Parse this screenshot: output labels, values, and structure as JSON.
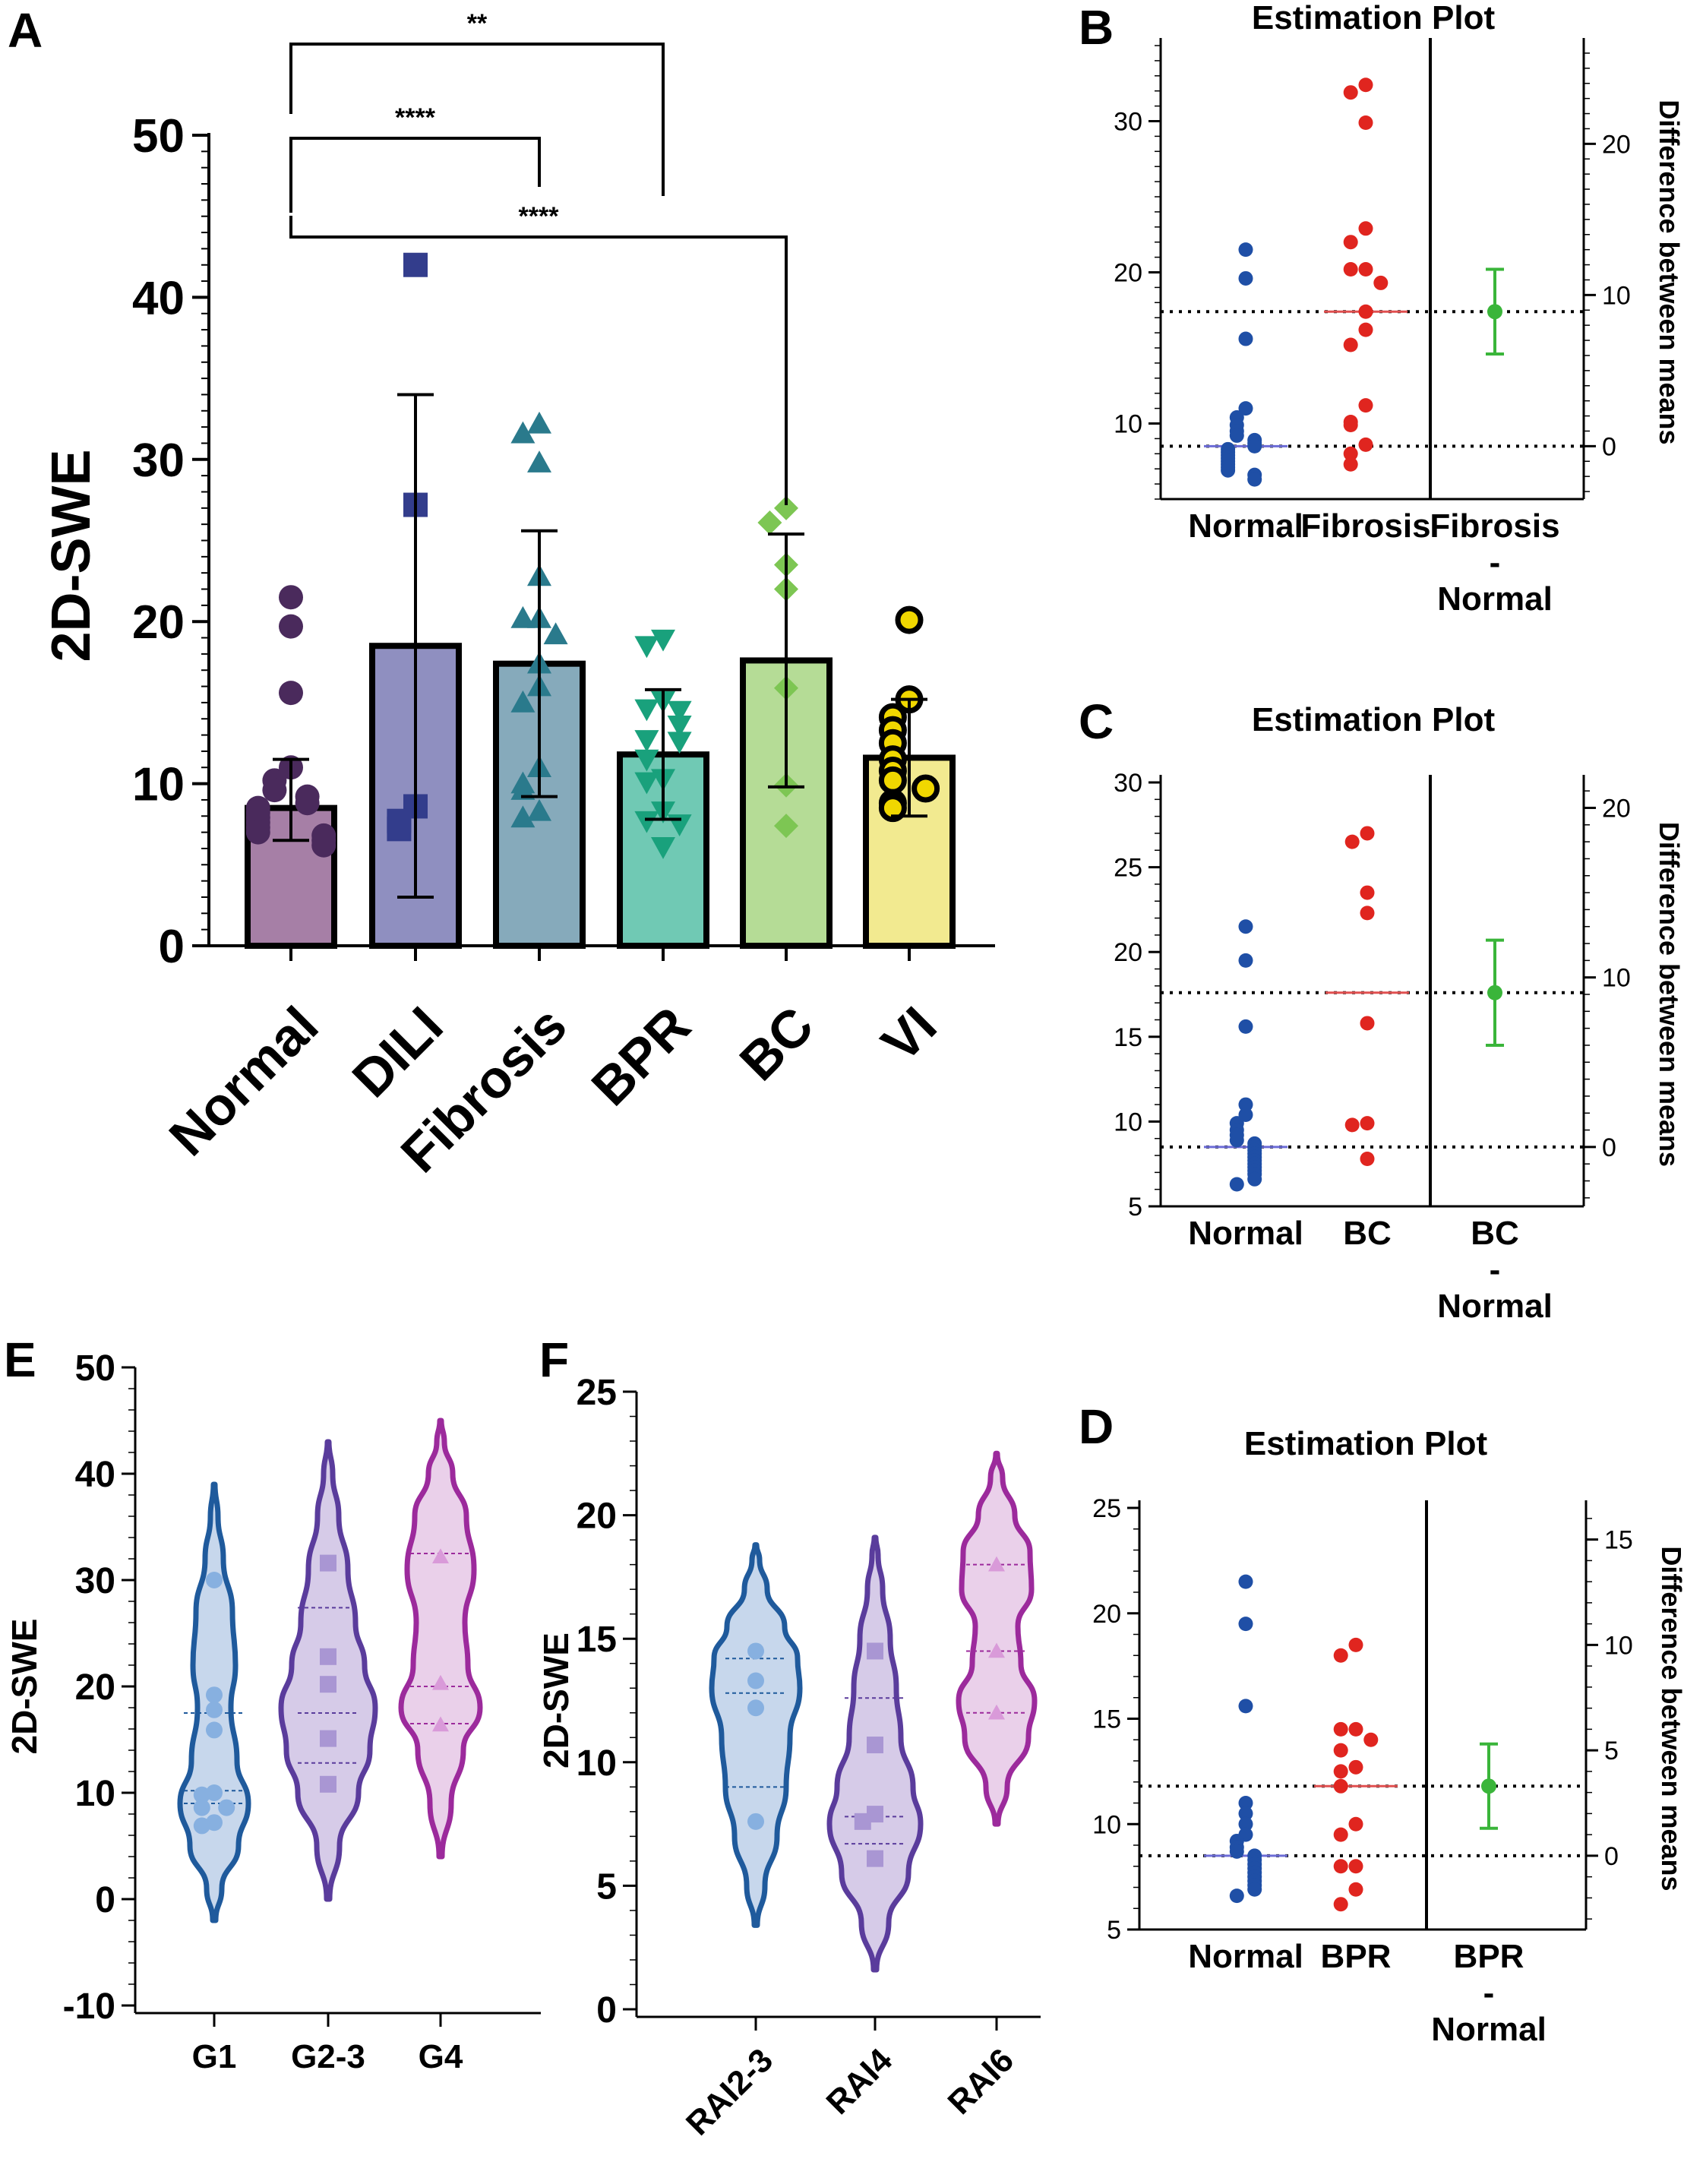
{
  "chart_data": [
    {
      "panel": "A",
      "type": "bar",
      "ylabel": "2D-SWE",
      "ylim": [
        0,
        50
      ],
      "yticks": [
        "0",
        "10",
        "20",
        "30",
        "40",
        "50"
      ],
      "categories": [
        "Normal",
        "DILI",
        "Fibrosis",
        "BPR",
        "BC",
        "VI"
      ],
      "means": [
        8.5,
        18.5,
        17.4,
        11.8,
        17.6,
        11.6
      ],
      "sd_upper": [
        11.5,
        34.0,
        25.6,
        15.8,
        25.4,
        15.2
      ],
      "sd_lower": [
        6.5,
        3.0,
        9.2,
        7.8,
        9.8,
        8.0
      ],
      "colors": [
        "#a67fa6",
        "#8f8fc0",
        "#86aabb",
        "#70c9b4",
        "#b5dc96",
        "#f2ea90"
      ],
      "marker_colors": [
        "#4a2a5c",
        "#333d8c",
        "#2a7a8c",
        "#19a17c",
        "#7dc653",
        "#f0d700"
      ],
      "points": [
        [
          21.5,
          19.7,
          15.6,
          11.0,
          10.2,
          9.6,
          9.2,
          8.8,
          8.5,
          8.2,
          7.9,
          7.6,
          7.3,
          7.0,
          6.8,
          6.5,
          6.2
        ],
        [
          42.0,
          27.2,
          8.6,
          7.7,
          7.2
        ],
        [
          32.2,
          31.6,
          29.8,
          22.8,
          20.2,
          20.2,
          19.2,
          17.4,
          16.0,
          15.0,
          11.0,
          10.0,
          9.6,
          8.3,
          7.9
        ],
        [
          18.9,
          18.5,
          15.1,
          14.6,
          14.5,
          13.6,
          12.7,
          12.6,
          11.5,
          10.3,
          10.1,
          8.3,
          7.7,
          7.5,
          6.1
        ],
        [
          27.0,
          26.1,
          23.5,
          22.0,
          15.9,
          9.9,
          7.4
        ],
        [
          20.1,
          15.2,
          14.1,
          13.3,
          12.5,
          11.5,
          10.8,
          10.2,
          9.7,
          8.8,
          8.5
        ]
      ],
      "significance": [
        {
          "pair": [
            "Normal",
            "BPR"
          ],
          "label": "**"
        },
        {
          "pair": [
            "Normal",
            "Fibrosis"
          ],
          "label": "****"
        },
        {
          "pair": [
            "Normal",
            "BC"
          ],
          "label": "****"
        }
      ]
    },
    {
      "panel": "B",
      "type": "scatter",
      "title": "Estimation Plot",
      "ylabel_right": "Difference between means",
      "left_ylim": [
        5,
        35
      ],
      "left_yticks": [
        10,
        20,
        30
      ],
      "right_yticks": [
        0,
        10,
        20
      ],
      "categories": [
        "Normal",
        "Fibrosis",
        "Fibrosis\n-\nNormal"
      ],
      "normal_mean": 8.5,
      "group_mean": 17.4,
      "difference": {
        "mean": 8.9,
        "ci": [
          6.1,
          11.7
        ]
      },
      "normal_points": [
        21.5,
        19.6,
        15.6,
        11.0,
        10.4,
        9.9,
        9.5,
        9.2,
        8.9,
        8.7,
        8.5,
        8.3,
        8.1,
        7.9,
        7.7,
        7.5,
        7.3,
        7.1,
        6.9,
        6.6,
        6.3
      ],
      "group_points": [
        32.4,
        31.9,
        29.9,
        22.9,
        22.0,
        20.2,
        20.2,
        19.3,
        17.4,
        16.2,
        15.2,
        11.2,
        10.1,
        9.9,
        8.6,
        8.0,
        7.3
      ]
    },
    {
      "panel": "C",
      "type": "scatter",
      "title": "Estimation Plot",
      "ylabel_right": "Difference between means",
      "left_ylim": [
        5,
        30
      ],
      "left_yticks": [
        5,
        10,
        15,
        20,
        25,
        30
      ],
      "right_yticks": [
        0,
        10,
        20
      ],
      "categories": [
        "Normal",
        "BC",
        "BC\n-\nNormal"
      ],
      "normal_mean": 8.5,
      "group_mean": 17.6,
      "difference": {
        "mean": 9.1,
        "ci": [
          6.0,
          12.2
        ]
      },
      "normal_points": [
        21.5,
        19.5,
        15.6,
        11.0,
        10.4,
        9.9,
        9.5,
        9.2,
        8.9,
        8.7,
        8.5,
        8.3,
        8.1,
        7.9,
        7.7,
        7.5,
        7.3,
        7.1,
        6.9,
        6.6,
        6.3
      ],
      "group_points": [
        27.0,
        26.5,
        23.5,
        22.3,
        15.8,
        9.9,
        9.8,
        7.8
      ]
    },
    {
      "panel": "D",
      "type": "scatter",
      "title": "Estimation Plot",
      "ylabel_right": "Difference between means",
      "left_ylim": [
        5,
        25
      ],
      "left_yticks": [
        5,
        10,
        15,
        20,
        25
      ],
      "right_yticks": [
        0,
        5,
        10,
        15
      ],
      "categories": [
        "Normal",
        "BPR",
        "BPR\n-\nNormal"
      ],
      "normal_mean": 8.5,
      "group_mean": 11.8,
      "difference": {
        "mean": 3.3,
        "ci": [
          1.3,
          5.3
        ]
      },
      "normal_points": [
        21.5,
        19.5,
        15.6,
        11.0,
        10.5,
        10.0,
        9.5,
        9.2,
        8.9,
        8.7,
        8.5,
        8.3,
        8.1,
        7.9,
        7.7,
        7.5,
        7.3,
        7.1,
        6.9,
        6.6
      ],
      "group_points": [
        18.5,
        18.0,
        14.5,
        14.5,
        14.0,
        13.5,
        12.7,
        12.5,
        11.8,
        10.0,
        9.5,
        8.0,
        8.0,
        6.9,
        6.2
      ]
    },
    {
      "panel": "E",
      "type": "violin",
      "ylabel": "2D-SWE",
      "ylim": [
        -10,
        50
      ],
      "yticks": [
        "-10",
        "0",
        "10",
        "20",
        "30",
        "40",
        "50"
      ],
      "categories": [
        "G1",
        "G2-3",
        "G4"
      ],
      "colors": [
        "#1f5a9c",
        "#5a3c9c",
        "#9c2a9c"
      ],
      "fills": [
        "#c7d7ec",
        "#d6cbe8",
        "#ead0ea"
      ],
      "ranges": [
        [
          -2,
          39
        ],
        [
          0,
          43
        ],
        [
          4,
          45
        ]
      ],
      "medians": [
        10.2,
        17.5,
        20.0
      ],
      "quartiles": [
        [
          9.0,
          17.5
        ],
        [
          12.8,
          27.4
        ],
        [
          16.5,
          32.5
        ]
      ],
      "points": [
        [
          30.0,
          19.2,
          17.8,
          15.9,
          10.0,
          9.8,
          8.6,
          8.6,
          7.2,
          6.9
        ],
        [
          31.6,
          22.8,
          20.2,
          15.1,
          10.8
        ],
        [
          32.2,
          20.3,
          16.4
        ]
      ]
    },
    {
      "panel": "F",
      "type": "violin",
      "ylabel": "2D-SWE",
      "ylim": [
        0,
        25
      ],
      "yticks": [
        "0",
        "5",
        "10",
        "15",
        "20",
        "25"
      ],
      "categories": [
        "RAI2-3",
        "RAI4",
        "RAI6"
      ],
      "colors": [
        "#1f5a9c",
        "#5a3c9c",
        "#9c2a9c"
      ],
      "fills": [
        "#c7d7ec",
        "#d6cbe8",
        "#ead0ea"
      ],
      "ranges": [
        [
          3.4,
          18.8
        ],
        [
          1.6,
          19.1
        ],
        [
          7.5,
          22.5
        ]
      ],
      "medians": [
        12.8,
        7.8,
        14.5
      ],
      "quartiles": [
        [
          9.0,
          14.2
        ],
        [
          6.7,
          12.6
        ],
        [
          12.0,
          18.0
        ]
      ],
      "points": [
        [
          14.5,
          13.3,
          12.2,
          7.6
        ],
        [
          14.5,
          10.7,
          7.9,
          7.6,
          6.1
        ],
        [
          18.0,
          14.5,
          12.0
        ]
      ]
    }
  ]
}
